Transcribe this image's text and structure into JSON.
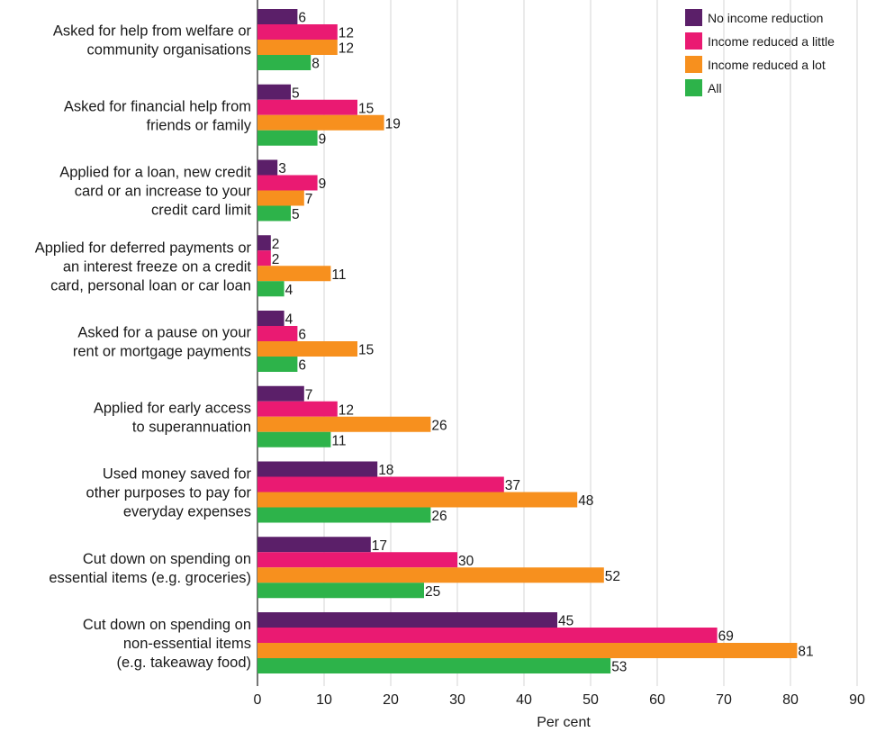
{
  "chart_data": {
    "type": "bar",
    "orientation": "horizontal",
    "title": "",
    "xlabel": "Per cent",
    "ylabel": "",
    "xlim": [
      0,
      90
    ],
    "xticks": [
      0,
      10,
      20,
      30,
      40,
      50,
      60,
      70,
      80,
      90
    ],
    "grid": true,
    "legend_position": "top-right",
    "categories": [
      [
        "Asked for help from welfare or",
        "community organisations"
      ],
      [
        "Asked for financial help from",
        "friends or family"
      ],
      [
        "Applied for a loan, new credit",
        "card or an increase to your",
        "credit card limit"
      ],
      [
        "Applied for deferred payments or",
        "an interest freeze on a credit",
        "card, personal loan or car loan"
      ],
      [
        "Asked for a pause on your",
        "rent or mortgage payments"
      ],
      [
        "Applied for early access",
        "to superannuation"
      ],
      [
        "Used money saved for",
        "other purposes to pay for",
        "everyday expenses"
      ],
      [
        "Cut down on spending on",
        "essential items (e.g. groceries)"
      ],
      [
        "Cut down on spending on",
        "non-essential items",
        "(e.g. takeaway food)"
      ]
    ],
    "series": [
      {
        "name": "No income reduction",
        "color": "#5b1f69",
        "values": [
          6,
          5,
          3,
          2,
          4,
          7,
          18,
          17,
          45
        ]
      },
      {
        "name": "Income reduced a little",
        "color": "#ea1a72",
        "values": [
          12,
          15,
          9,
          2,
          6,
          12,
          37,
          30,
          69
        ]
      },
      {
        "name": "Income reduced a lot",
        "color": "#f7901e",
        "values": [
          12,
          19,
          7,
          11,
          15,
          26,
          48,
          52,
          81
        ]
      },
      {
        "name": "All",
        "color": "#2db34a",
        "values": [
          8,
          9,
          5,
          4,
          6,
          11,
          26,
          25,
          53
        ]
      }
    ]
  }
}
